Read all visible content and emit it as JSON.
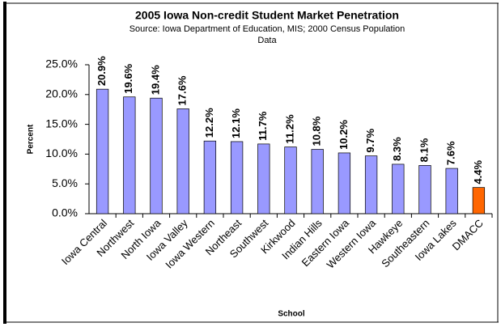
{
  "chart_data": {
    "type": "bar",
    "title": "2005 Iowa Non-credit Student Market Penetration",
    "subtitle": [
      "Source: Iowa Department of Education, MIS; 2000 Census Population",
      "Data"
    ],
    "x_label": "School",
    "y_label": "Percent",
    "categories": [
      "Iowa Central",
      "Northwest",
      "North Iowa",
      "Iowa Valley",
      "Iowa Western",
      "Northeast",
      "Southwest",
      "Kirkwood",
      "Indian Hills",
      "Eastern Iowa",
      "Western Iowa",
      "Hawkeye",
      "Southeastern",
      "Iowa Lakes",
      "DMACC"
    ],
    "values": [
      20.9,
      19.6,
      19.4,
      17.6,
      12.2,
      12.1,
      11.7,
      11.2,
      10.8,
      10.2,
      9.7,
      8.3,
      8.1,
      7.6,
      4.4
    ],
    "value_labels": [
      "20.9%",
      "19.6%",
      "19.4%",
      "17.6%",
      "12.2%",
      "12.1%",
      "11.7%",
      "11.2%",
      "10.8%",
      "10.2%",
      "9.7%",
      "8.3%",
      "8.1%",
      "7.6%",
      "4.4%"
    ],
    "colors": [
      "#9999ff",
      "#9999ff",
      "#9999ff",
      "#9999ff",
      "#9999ff",
      "#9999ff",
      "#9999ff",
      "#9999ff",
      "#9999ff",
      "#9999ff",
      "#9999ff",
      "#9999ff",
      "#9999ff",
      "#9999ff",
      "#ff6600"
    ],
    "ylim": [
      0,
      25
    ],
    "yticks": [
      {
        "value": 0,
        "label": "0.0%"
      },
      {
        "value": 5,
        "label": "5.0%"
      },
      {
        "value": 10,
        "label": "10.0%"
      },
      {
        "value": 15,
        "label": "15.0%"
      },
      {
        "value": 20,
        "label": "20.0%"
      },
      {
        "value": 25,
        "label": "25.0%"
      }
    ],
    "grid": false
  }
}
